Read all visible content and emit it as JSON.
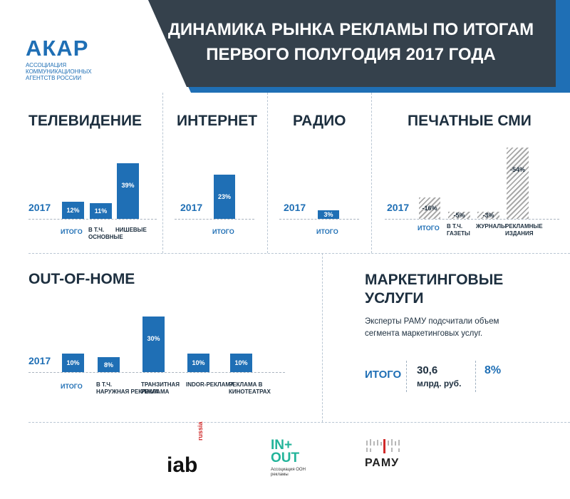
{
  "header": {
    "logo": "АКАР",
    "logo_subtitle": "АССОЦИАЦИЯ КОММУНИКАЦИОННЫХ АГЕНТСТВ РОССИИ",
    "title_line1": "ДИНАМИКА РЫНКА РЕКЛАМЫ ПО ИТОГАМ",
    "title_line2": "ПЕРВОГО ПОЛУГОДИЯ 2017 ГОДА"
  },
  "year_label": "2017",
  "colors": {
    "blue": "#1f6fb5",
    "dark": "#35414c",
    "text": "#1d2f3f"
  },
  "chart_data": [
    {
      "type": "bar",
      "title": "ТЕЛЕВИДЕНИЕ",
      "categories": [
        "ИТОГО",
        "В Т.Ч. ОСНОВНЫЕ",
        "НИШЕВЫЕ"
      ],
      "labels": [
        "12%",
        "11%",
        "39%"
      ],
      "values": [
        12,
        11,
        39
      ]
    },
    {
      "type": "bar",
      "title": "ИНТЕРНЕТ",
      "categories": [
        "ИТОГО"
      ],
      "labels": [
        "23%"
      ],
      "values": [
        23
      ]
    },
    {
      "type": "bar",
      "title": "РАДИО",
      "categories": [
        "ИТОГО"
      ],
      "labels": [
        "3%"
      ],
      "values": [
        3
      ]
    },
    {
      "type": "bar",
      "title": "ПЕЧАТНЫЕ СМИ",
      "categories": [
        "ИТОГО",
        "В Т.Ч. ГАЗЕТЫ",
        "ЖУРНАЛЫ",
        "РЕКЛАМНЫЕ ИЗДАНИЯ"
      ],
      "labels": [
        "-16%",
        "-5%",
        "-3%",
        "-54%"
      ],
      "values": [
        -16,
        -5,
        -3,
        -54
      ]
    },
    {
      "type": "bar",
      "title": "OUT-OF-HOME",
      "categories": [
        "ИТОГО",
        "В Т.Ч. НАРУЖНАЯ РЕКЛАМА",
        "ТРАНЗИТНАЯ РЕКЛАМА",
        "INDOR-РЕКЛАМА",
        "РЕКЛАМА В КИНОТЕАТРАХ"
      ],
      "labels": [
        "10%",
        "8%",
        "30%",
        "10%",
        "10%"
      ],
      "values": [
        10,
        8,
        30,
        10,
        10
      ]
    }
  ],
  "marketing": {
    "title": "МАРКЕТИНГОВЫЕ УСЛУГИ",
    "description": "Эксперты РАМУ подсчитали объем сегмента маркетинговых услуг.",
    "total_label": "ИТОГО",
    "value": "30,6",
    "unit": "млрд. руб.",
    "percent": "8%"
  },
  "footer": {
    "iab_main": "iab",
    "iab_sub": "russia",
    "inout_main": "IN+ OUT",
    "inout_sub": "Ассоциация ООН рекламы",
    "ramu": "РАМУ"
  }
}
